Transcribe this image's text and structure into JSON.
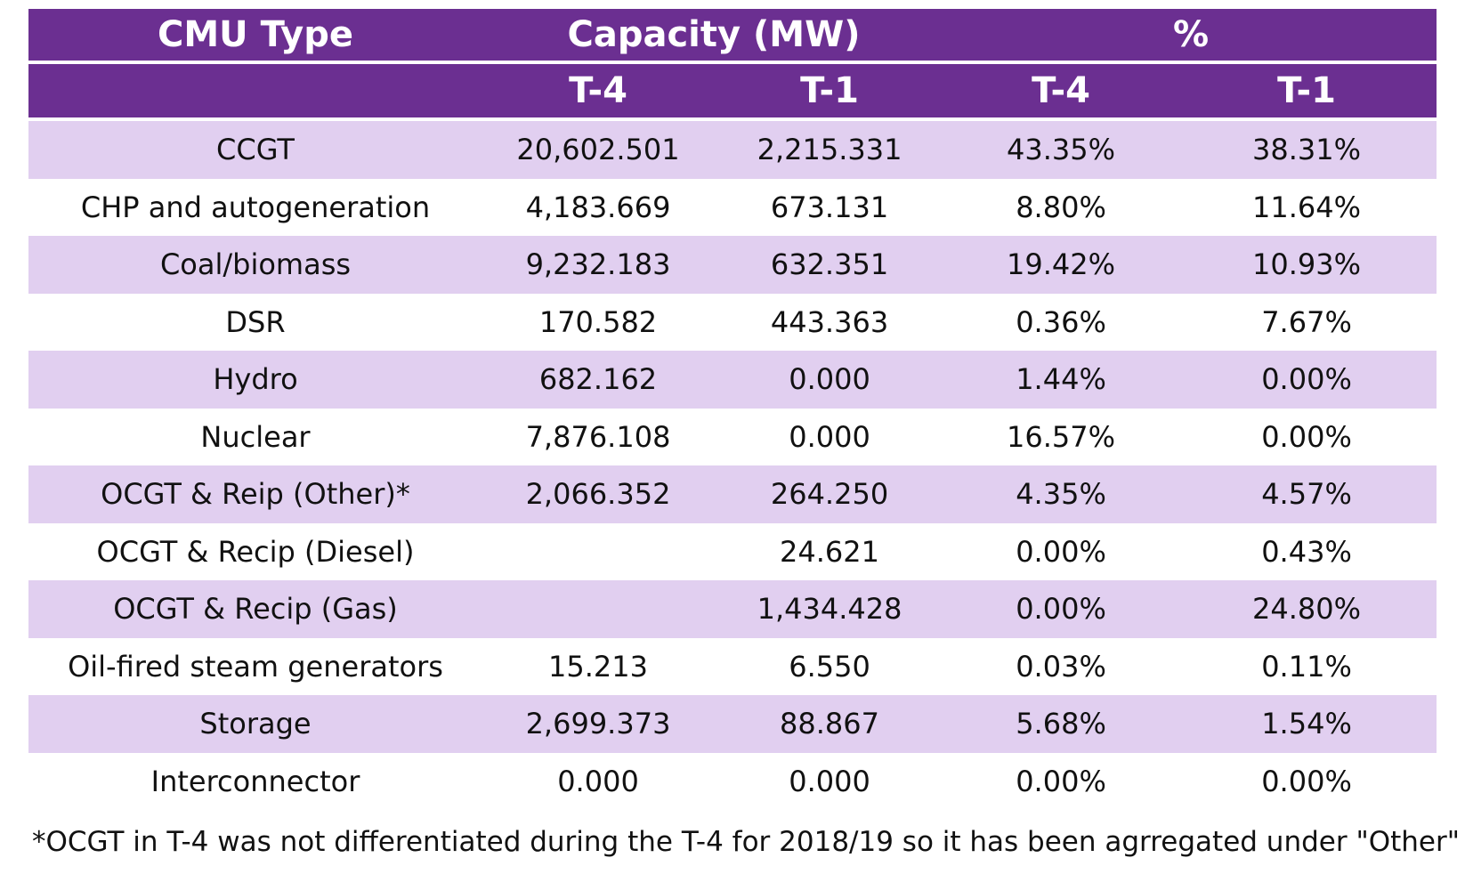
{
  "colors": {
    "header_bg": "#6b2f91",
    "header_text": "#ffffff",
    "row_shaded": "#e1cff0",
    "row_plain": "#ffffff"
  },
  "header": {
    "cmu_type": "CMU Type",
    "capacity": "Capacity (MW)",
    "percent": "%",
    "sub": [
      "",
      "T-4",
      "T-1",
      "T-4",
      "T-1"
    ]
  },
  "rows": [
    {
      "type": "CCGT",
      "cap_t4": "20,602.501",
      "cap_t1": "2,215.331",
      "pct_t4": "43.35%",
      "pct_t1": "38.31%"
    },
    {
      "type": "CHP and autogeneration",
      "cap_t4": "4,183.669",
      "cap_t1": "673.131",
      "pct_t4": "8.80%",
      "pct_t1": "11.64%"
    },
    {
      "type": "Coal/biomass",
      "cap_t4": "9,232.183",
      "cap_t1": "632.351",
      "pct_t4": "19.42%",
      "pct_t1": "10.93%"
    },
    {
      "type": "DSR",
      "cap_t4": "170.582",
      "cap_t1": "443.363",
      "pct_t4": "0.36%",
      "pct_t1": "7.67%"
    },
    {
      "type": "Hydro",
      "cap_t4": "682.162",
      "cap_t1": "0.000",
      "pct_t4": "1.44%",
      "pct_t1": "0.00%"
    },
    {
      "type": "Nuclear",
      "cap_t4": "7,876.108",
      "cap_t1": "0.000",
      "pct_t4": "16.57%",
      "pct_t1": "0.00%"
    },
    {
      "type": "OCGT & Reip (Other)*",
      "cap_t4": "2,066.352",
      "cap_t1": "264.250",
      "pct_t4": "4.35%",
      "pct_t1": "4.57%"
    },
    {
      "type": "OCGT & Recip (Diesel)",
      "cap_t4": "",
      "cap_t1": "24.621",
      "pct_t4": "0.00%",
      "pct_t1": "0.43%"
    },
    {
      "type": "OCGT & Recip (Gas)",
      "cap_t4": "",
      "cap_t1": "1,434.428",
      "pct_t4": "0.00%",
      "pct_t1": "24.80%"
    },
    {
      "type": "Oil-fired steam generators",
      "cap_t4": "15.213",
      "cap_t1": "6.550",
      "pct_t4": "0.03%",
      "pct_t1": "0.11%"
    },
    {
      "type": "Storage",
      "cap_t4": "2,699.373",
      "cap_t1": "88.867",
      "pct_t4": "5.68%",
      "pct_t1": "1.54%"
    },
    {
      "type": "Interconnector",
      "cap_t4": "0.000",
      "cap_t1": "0.000",
      "pct_t4": "0.00%",
      "pct_t1": "0.00%"
    }
  ],
  "footnote": "*OCGT in T-4 was not differentiated during the T-4 for 2018/19 so it has been agrregated under \"Other\""
}
